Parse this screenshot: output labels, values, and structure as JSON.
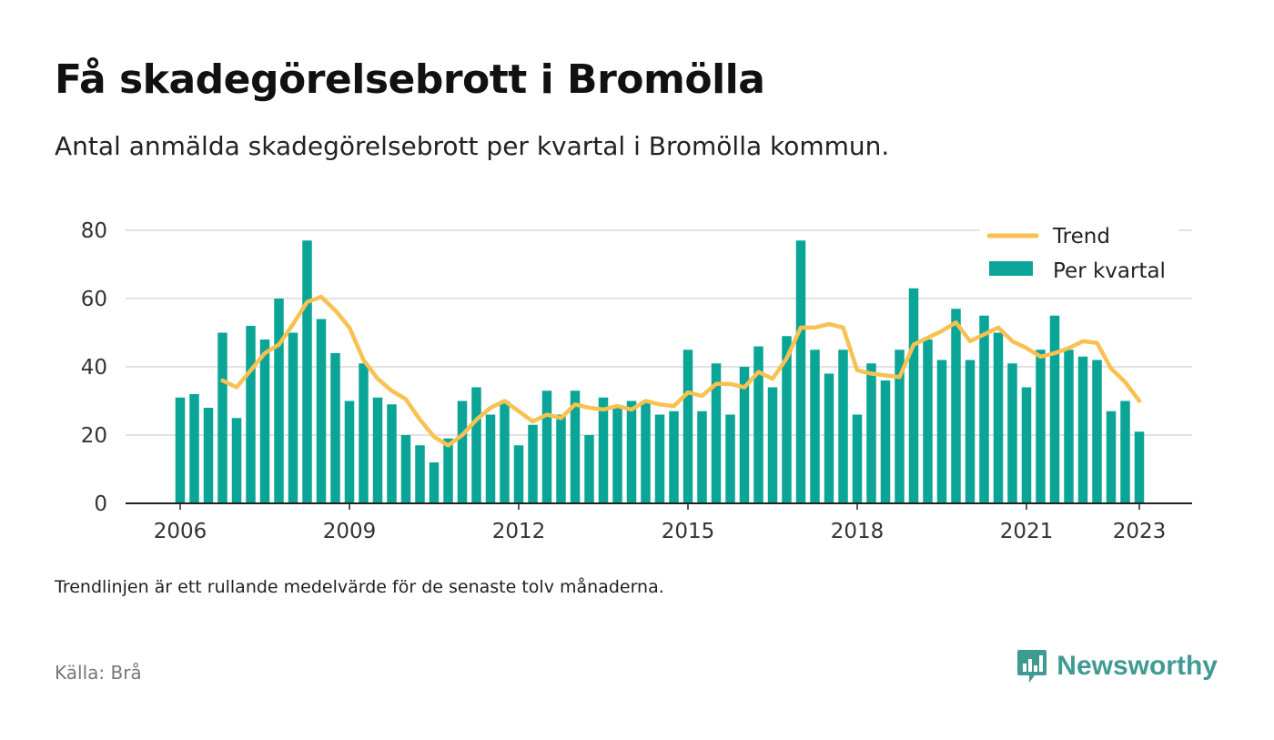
{
  "title": "Få skadegörelsebrott i Bromölla",
  "subtitle": "Antal anmälda skadegörelsebrott per kvartal i Bromölla kommun.",
  "note": "Trendlinjen är ett rullande medelvärde för de senaste tolv månaderna.",
  "source": "Källa: Brå",
  "brand": {
    "name": "Newsworthy",
    "icon": "newsworthy-logo-icon",
    "color": "#3f9b91"
  },
  "colors": {
    "bar": "#0aa596",
    "trend": "#f8c151",
    "grid": "#d9d9d9",
    "axis": "#222222"
  },
  "chart_data": {
    "type": "bar",
    "x_start": "2006 Q1",
    "x_tick_labels": [
      "2006",
      "2009",
      "2012",
      "2015",
      "2018",
      "2021",
      "2023"
    ],
    "y_ticks": [
      0,
      20,
      40,
      60,
      80
    ],
    "ylim": [
      0,
      80
    ],
    "grid": true,
    "legend_position": "top-right",
    "series": [
      {
        "name": "Per kvartal",
        "kind": "bar",
        "values": [
          31,
          32,
          28,
          50,
          25,
          52,
          48,
          60,
          50,
          77,
          54,
          44,
          30,
          41,
          31,
          29,
          20,
          17,
          12,
          19,
          30,
          34,
          26,
          30,
          17,
          23,
          33,
          26,
          33,
          20,
          31,
          28,
          30,
          30,
          26,
          27,
          45,
          27,
          41,
          26,
          40,
          46,
          34,
          49,
          77,
          45,
          38,
          45,
          26,
          41,
          36,
          45,
          63,
          48,
          42,
          57,
          42,
          55,
          50,
          41,
          34,
          45,
          55,
          45,
          43,
          42,
          27,
          30,
          21
        ]
      },
      {
        "name": "Trend",
        "kind": "line",
        "start_index": 3,
        "values": [
          36,
          34,
          39,
          44,
          46.5,
          52.5,
          59,
          60.5,
          56.5,
          51.5,
          42,
          36.5,
          33,
          30.5,
          24.5,
          19.5,
          17,
          20,
          24.5,
          28,
          30,
          27,
          24,
          26,
          25,
          29,
          28,
          27.5,
          28.5,
          27.5,
          30,
          29,
          28.5,
          32.5,
          31.5,
          35,
          35,
          34,
          38.5,
          36.5,
          42.5,
          51.5,
          51.5,
          52.5,
          51.5,
          39,
          38,
          37.5,
          37,
          46.5,
          48.5,
          50.5,
          53,
          47.5,
          49.5,
          51.5,
          47.5,
          45.5,
          43,
          44,
          45.5,
          47.5,
          47,
          39.5,
          35.5,
          30
        ]
      }
    ]
  }
}
